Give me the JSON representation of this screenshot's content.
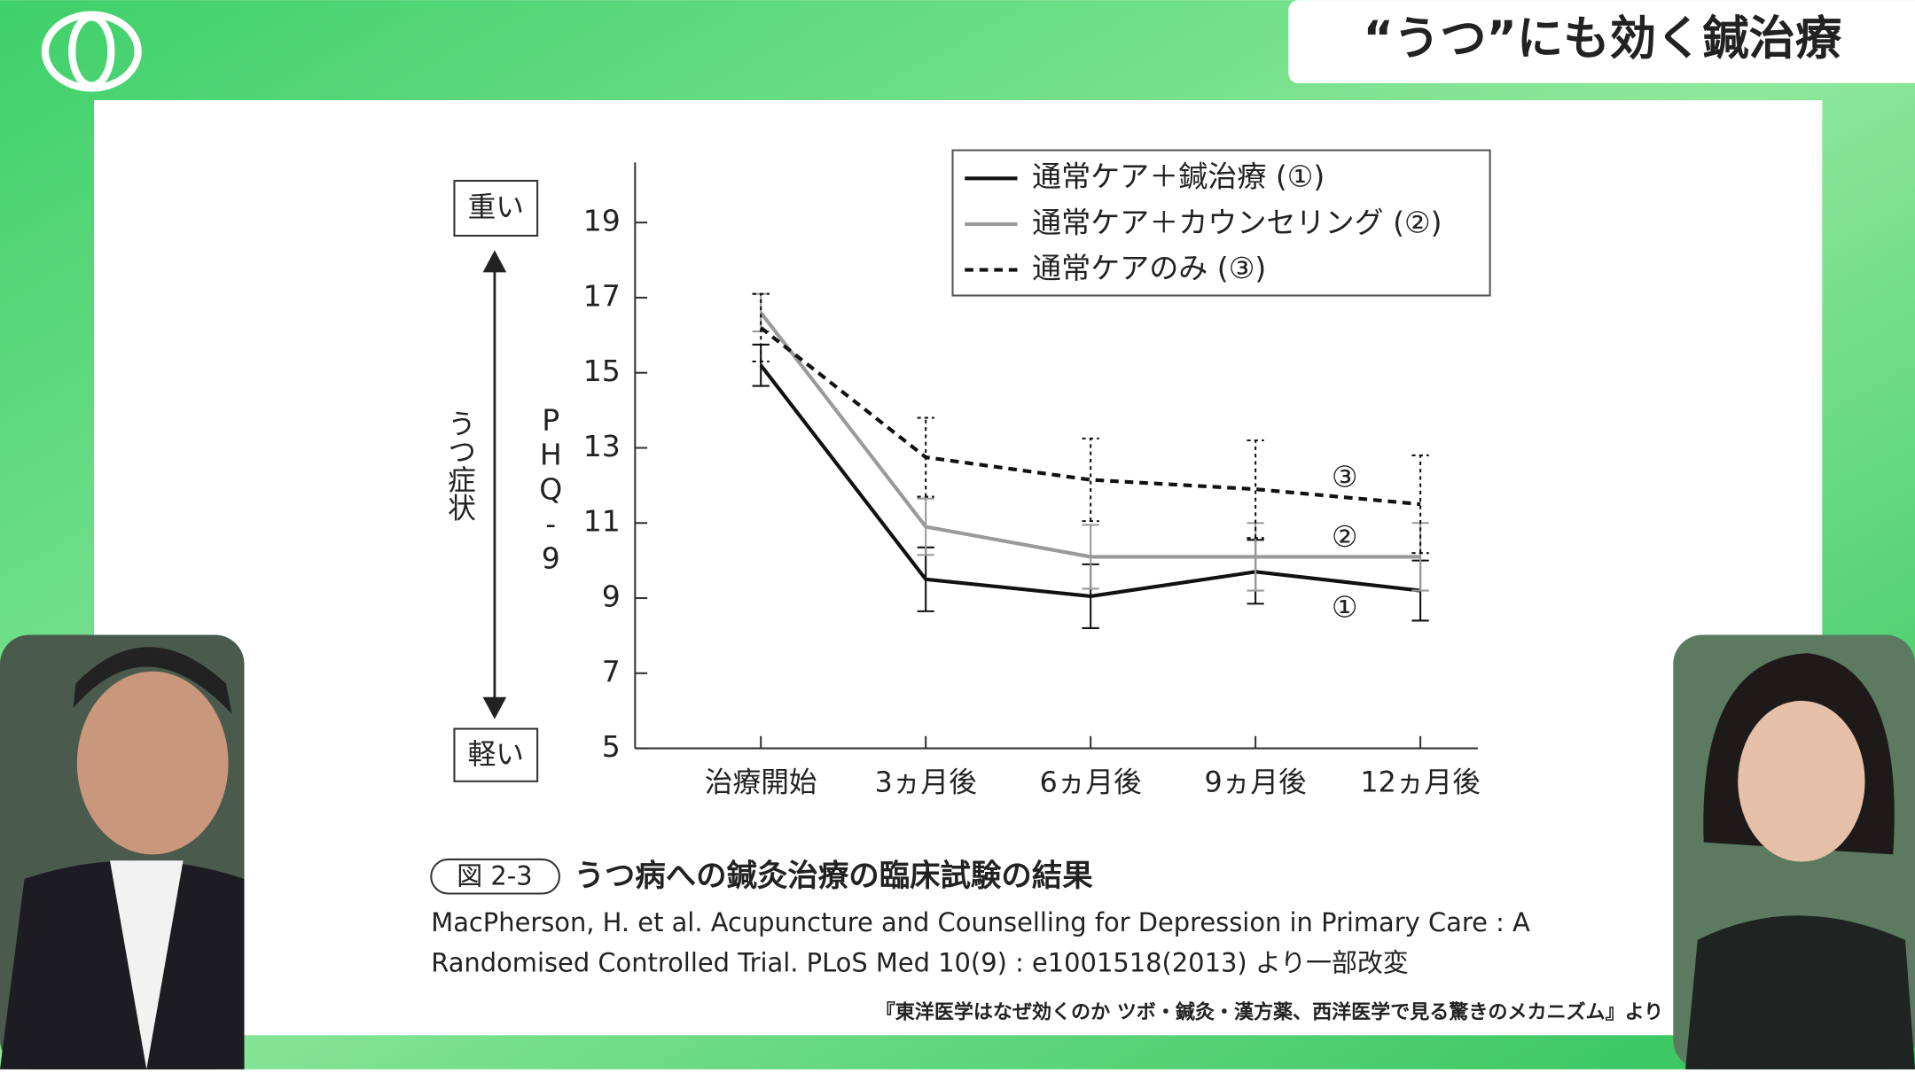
{
  "header": {
    "title": "“うつ”にも効く鍼治療"
  },
  "chart_data": {
    "type": "line",
    "categories": [
      "治療開始",
      "3ヵ月後",
      "6ヵ月後",
      "9ヵ月後",
      "12ヵ月後"
    ],
    "series": [
      {
        "name": "通常ケア＋鍼治療 (①)",
        "color": "#111111",
        "dash": false,
        "values": [
          15.2,
          9.5,
          9.05,
          9.7,
          9.2
        ],
        "errors": [
          0.55,
          0.85,
          0.85,
          0.85,
          0.8
        ]
      },
      {
        "name": "通常ケア＋カウンセリング (②)",
        "color": "#9a9a9a",
        "dash": false,
        "values": [
          16.6,
          10.9,
          10.1,
          10.1,
          10.1
        ],
        "errors": [
          0.5,
          0.75,
          0.85,
          0.9,
          0.9
        ]
      },
      {
        "name": "通常ケアのみ (③)",
        "color": "#111111",
        "dash": true,
        "values": [
          16.2,
          12.75,
          12.15,
          11.9,
          11.5
        ],
        "errors": [
          0.9,
          1.05,
          1.1,
          1.3,
          1.3
        ]
      }
    ],
    "annotations": [
      "①",
      "②",
      "③"
    ],
    "ylim": [
      5,
      20.6
    ],
    "yticks": [
      5,
      7,
      9,
      11,
      13,
      15,
      17,
      19
    ],
    "ylabel": "PHQ-9",
    "side_label": "うつ症状",
    "top_label": "重い",
    "bottom_label": "軽い",
    "legend": "top-right"
  },
  "caption": {
    "figure": "図 2-3",
    "title": "うつ病への鍼灸治療の臨床試験の結果"
  },
  "source": [
    "MacPherson, H. et al. Acupuncture and Counselling for Depression in Primary Care : A",
    "Randomised Controlled Trial. PLoS Med 10(9) : e1001518(2013) より一部改変"
  ],
  "credit": "『東洋医学はなぜ効くのか ツボ・鍼灸・漢方薬、西洋医学で見る驚きのメカニズム』より"
}
